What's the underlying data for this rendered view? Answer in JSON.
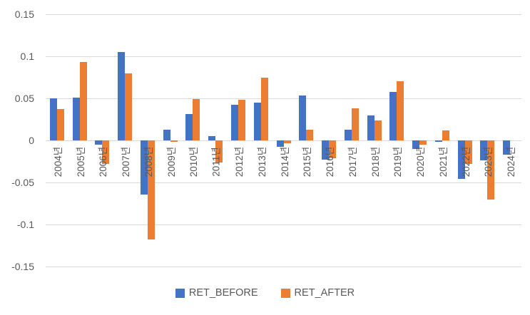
{
  "chart_data": {
    "type": "bar",
    "title": "",
    "xlabel": "",
    "ylabel": "",
    "categories": [
      "2004년",
      "2005년",
      "2006년",
      "2007년",
      "2008년",
      "2009년",
      "2010년",
      "2011년",
      "2012년",
      "2013년",
      "2014년",
      "2015년",
      "2016년",
      "2017년",
      "2018년",
      "2019년",
      "2020년",
      "2021년",
      "2022년",
      "2023년",
      "2024년"
    ],
    "series": [
      {
        "name": "RET_BEFORE",
        "color": "#4472C4",
        "values": [
          0.05,
          0.051,
          -0.005,
          0.105,
          -0.064,
          0.013,
          0.031,
          0.005,
          0.042,
          0.045,
          -0.008,
          0.053,
          -0.023,
          0.013,
          0.03,
          0.058,
          -0.01,
          -0.002,
          -0.046,
          -0.024,
          -0.017
        ]
      },
      {
        "name": "RET_AFTER",
        "color": "#ED7D31",
        "values": [
          0.037,
          0.093,
          -0.028,
          0.08,
          -0.118,
          -0.002,
          0.049,
          -0.026,
          0.048,
          0.075,
          -0.003,
          0.013,
          -0.021,
          0.038,
          0.024,
          0.07,
          -0.005,
          0.012,
          -0.028,
          -0.07,
          0.0
        ]
      }
    ],
    "ylim": [
      -0.15,
      0.15
    ],
    "y_ticks": [
      0.15,
      0.1,
      0.05,
      0,
      -0.05,
      -0.1,
      -0.15
    ],
    "y_tick_labels": [
      "0.15",
      "0.1",
      "0.05",
      "0",
      "-0.05",
      "-0.1",
      "-0.15"
    ],
    "grid": true,
    "legend_position": "bottom"
  },
  "colors": {
    "bar_before": "#4472C4",
    "bar_after": "#ED7D31",
    "gridline": "#D9D9D9",
    "axis_text": "#595959",
    "background": "#FFFFFF"
  }
}
